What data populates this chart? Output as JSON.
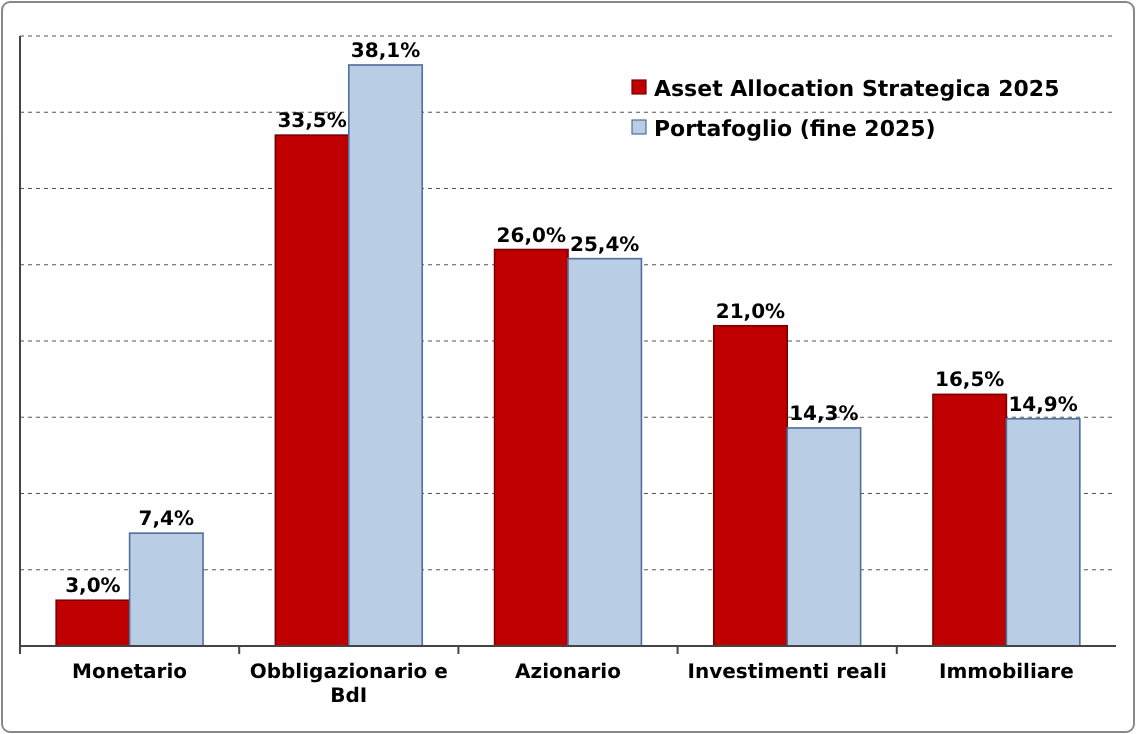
{
  "chart_data": {
    "type": "bar",
    "categories": [
      "Monetario",
      "Obbligazionario e BdI",
      "Azionario",
      "Investimenti reali",
      "Immobiliare"
    ],
    "series": [
      {
        "name": "Asset Allocation Strategica 2025",
        "color": "#c00000",
        "values": [
          3.0,
          33.5,
          26.0,
          21.0,
          16.5
        ],
        "value_labels": [
          "3,0%",
          "33,5%",
          "26,0%",
          "21,0%",
          "16,5%"
        ]
      },
      {
        "name": "Portafoglio (fine 2025)",
        "color": "#b9cde5",
        "values": [
          7.4,
          38.1,
          25.4,
          14.3,
          14.9
        ],
        "value_labels": [
          "7,4%",
          "38,1%",
          "25,4%",
          "14,3%",
          "14,9%"
        ]
      }
    ],
    "ylim": [
      0,
      40
    ],
    "yticks": [
      {
        "value": 0,
        "label": null
      },
      {
        "value": 5,
        "label": null
      },
      {
        "value": 10,
        "label": null
      },
      {
        "value": 15,
        "label": null
      },
      {
        "value": 20,
        "label": null
      },
      {
        "value": 25,
        "label": null
      },
      {
        "value": 30,
        "label": null
      },
      {
        "value": 35,
        "label": null
      },
      {
        "value": 40,
        "label": null
      }
    ],
    "grid": "y",
    "tick_labels": "x",
    "legend": "top right"
  }
}
